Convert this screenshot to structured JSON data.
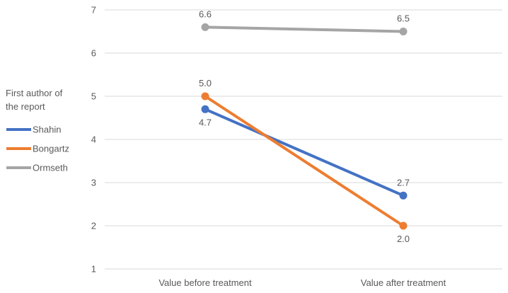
{
  "chart_data": {
    "type": "line",
    "categories": [
      "Value before treatment",
      "Value after treatment"
    ],
    "ylim": [
      1,
      7
    ],
    "yticks": [
      1,
      2,
      3,
      4,
      5,
      6,
      7
    ],
    "grid": true,
    "legend": {
      "title_lines": [
        "First author of",
        "the report"
      ],
      "position": "left"
    },
    "series": [
      {
        "name": "Shahin",
        "color": "#4472C4",
        "values": [
          4.7,
          2.7
        ],
        "labels": [
          "4.7",
          "2.7"
        ],
        "label_pos": [
          "below",
          "above"
        ]
      },
      {
        "name": "Bongartz",
        "color": "#ED7D31",
        "values": [
          5.0,
          2.0
        ],
        "labels": [
          "5.0",
          "2.0"
        ],
        "label_pos": [
          "above",
          "below"
        ]
      },
      {
        "name": "Ormseth",
        "color": "#A5A5A5",
        "values": [
          6.6,
          6.5
        ],
        "labels": [
          "6.6",
          "6.5"
        ],
        "label_pos": [
          "above",
          "above"
        ]
      }
    ]
  }
}
